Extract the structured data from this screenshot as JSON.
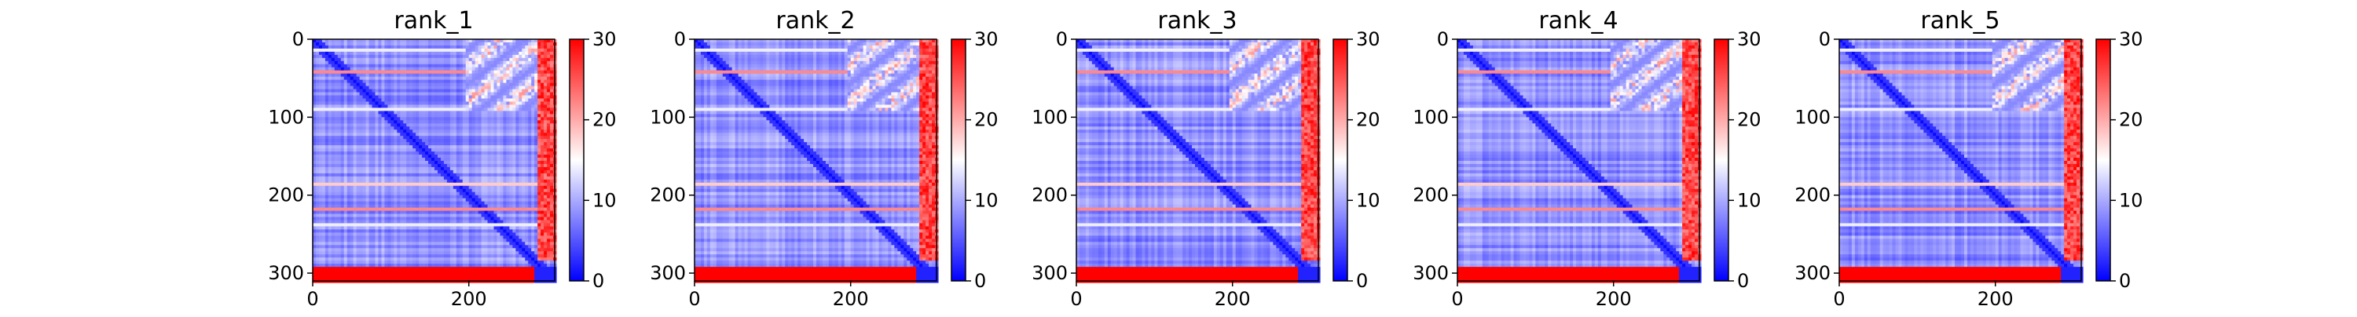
{
  "chart_data": [
    {
      "type": "heatmap",
      "title": "rank_1",
      "xticks": [
        0,
        200
      ],
      "yticks": [
        0,
        100,
        200,
        300
      ],
      "colorbar": {
        "ticks": [
          0,
          10,
          20,
          30
        ],
        "range": [
          0,
          30
        ],
        "colormap": "bwr"
      },
      "n_residues": 310,
      "n_residues_low_block": 290
    },
    {
      "type": "heatmap",
      "title": "rank_2",
      "xticks": [
        0,
        200
      ],
      "yticks": [
        0,
        100,
        200,
        300
      ],
      "colorbar": {
        "ticks": [
          0,
          10,
          20,
          30
        ],
        "range": [
          0,
          30
        ],
        "colormap": "bwr"
      },
      "n_residues": 310,
      "n_residues_low_block": 290
    },
    {
      "type": "heatmap",
      "title": "rank_3",
      "xticks": [
        0,
        200
      ],
      "yticks": [
        0,
        100,
        200,
        300
      ],
      "colorbar": {
        "ticks": [
          0,
          10,
          20,
          30
        ],
        "range": [
          0,
          30
        ],
        "colormap": "bwr"
      },
      "n_residues": 310,
      "n_residues_low_block": 290
    },
    {
      "type": "heatmap",
      "title": "rank_4",
      "xticks": [
        0,
        200
      ],
      "yticks": [
        0,
        100,
        200,
        300
      ],
      "colorbar": {
        "ticks": [
          0,
          10,
          20,
          30
        ],
        "range": [
          0,
          30
        ],
        "colormap": "bwr"
      },
      "n_residues": 310,
      "n_residues_low_block": 290
    },
    {
      "type": "heatmap",
      "title": "rank_5",
      "xticks": [
        0,
        200
      ],
      "yticks": [
        0,
        100,
        200,
        300
      ],
      "colorbar": {
        "ticks": [
          0,
          10,
          20,
          30
        ],
        "range": [
          0,
          30
        ],
        "colormap": "bwr"
      },
      "n_residues": 310,
      "n_residues_low_block": 290
    }
  ],
  "colors": {
    "low": "#0000ff",
    "mid": "#ffffff",
    "high": "#ff0000"
  }
}
